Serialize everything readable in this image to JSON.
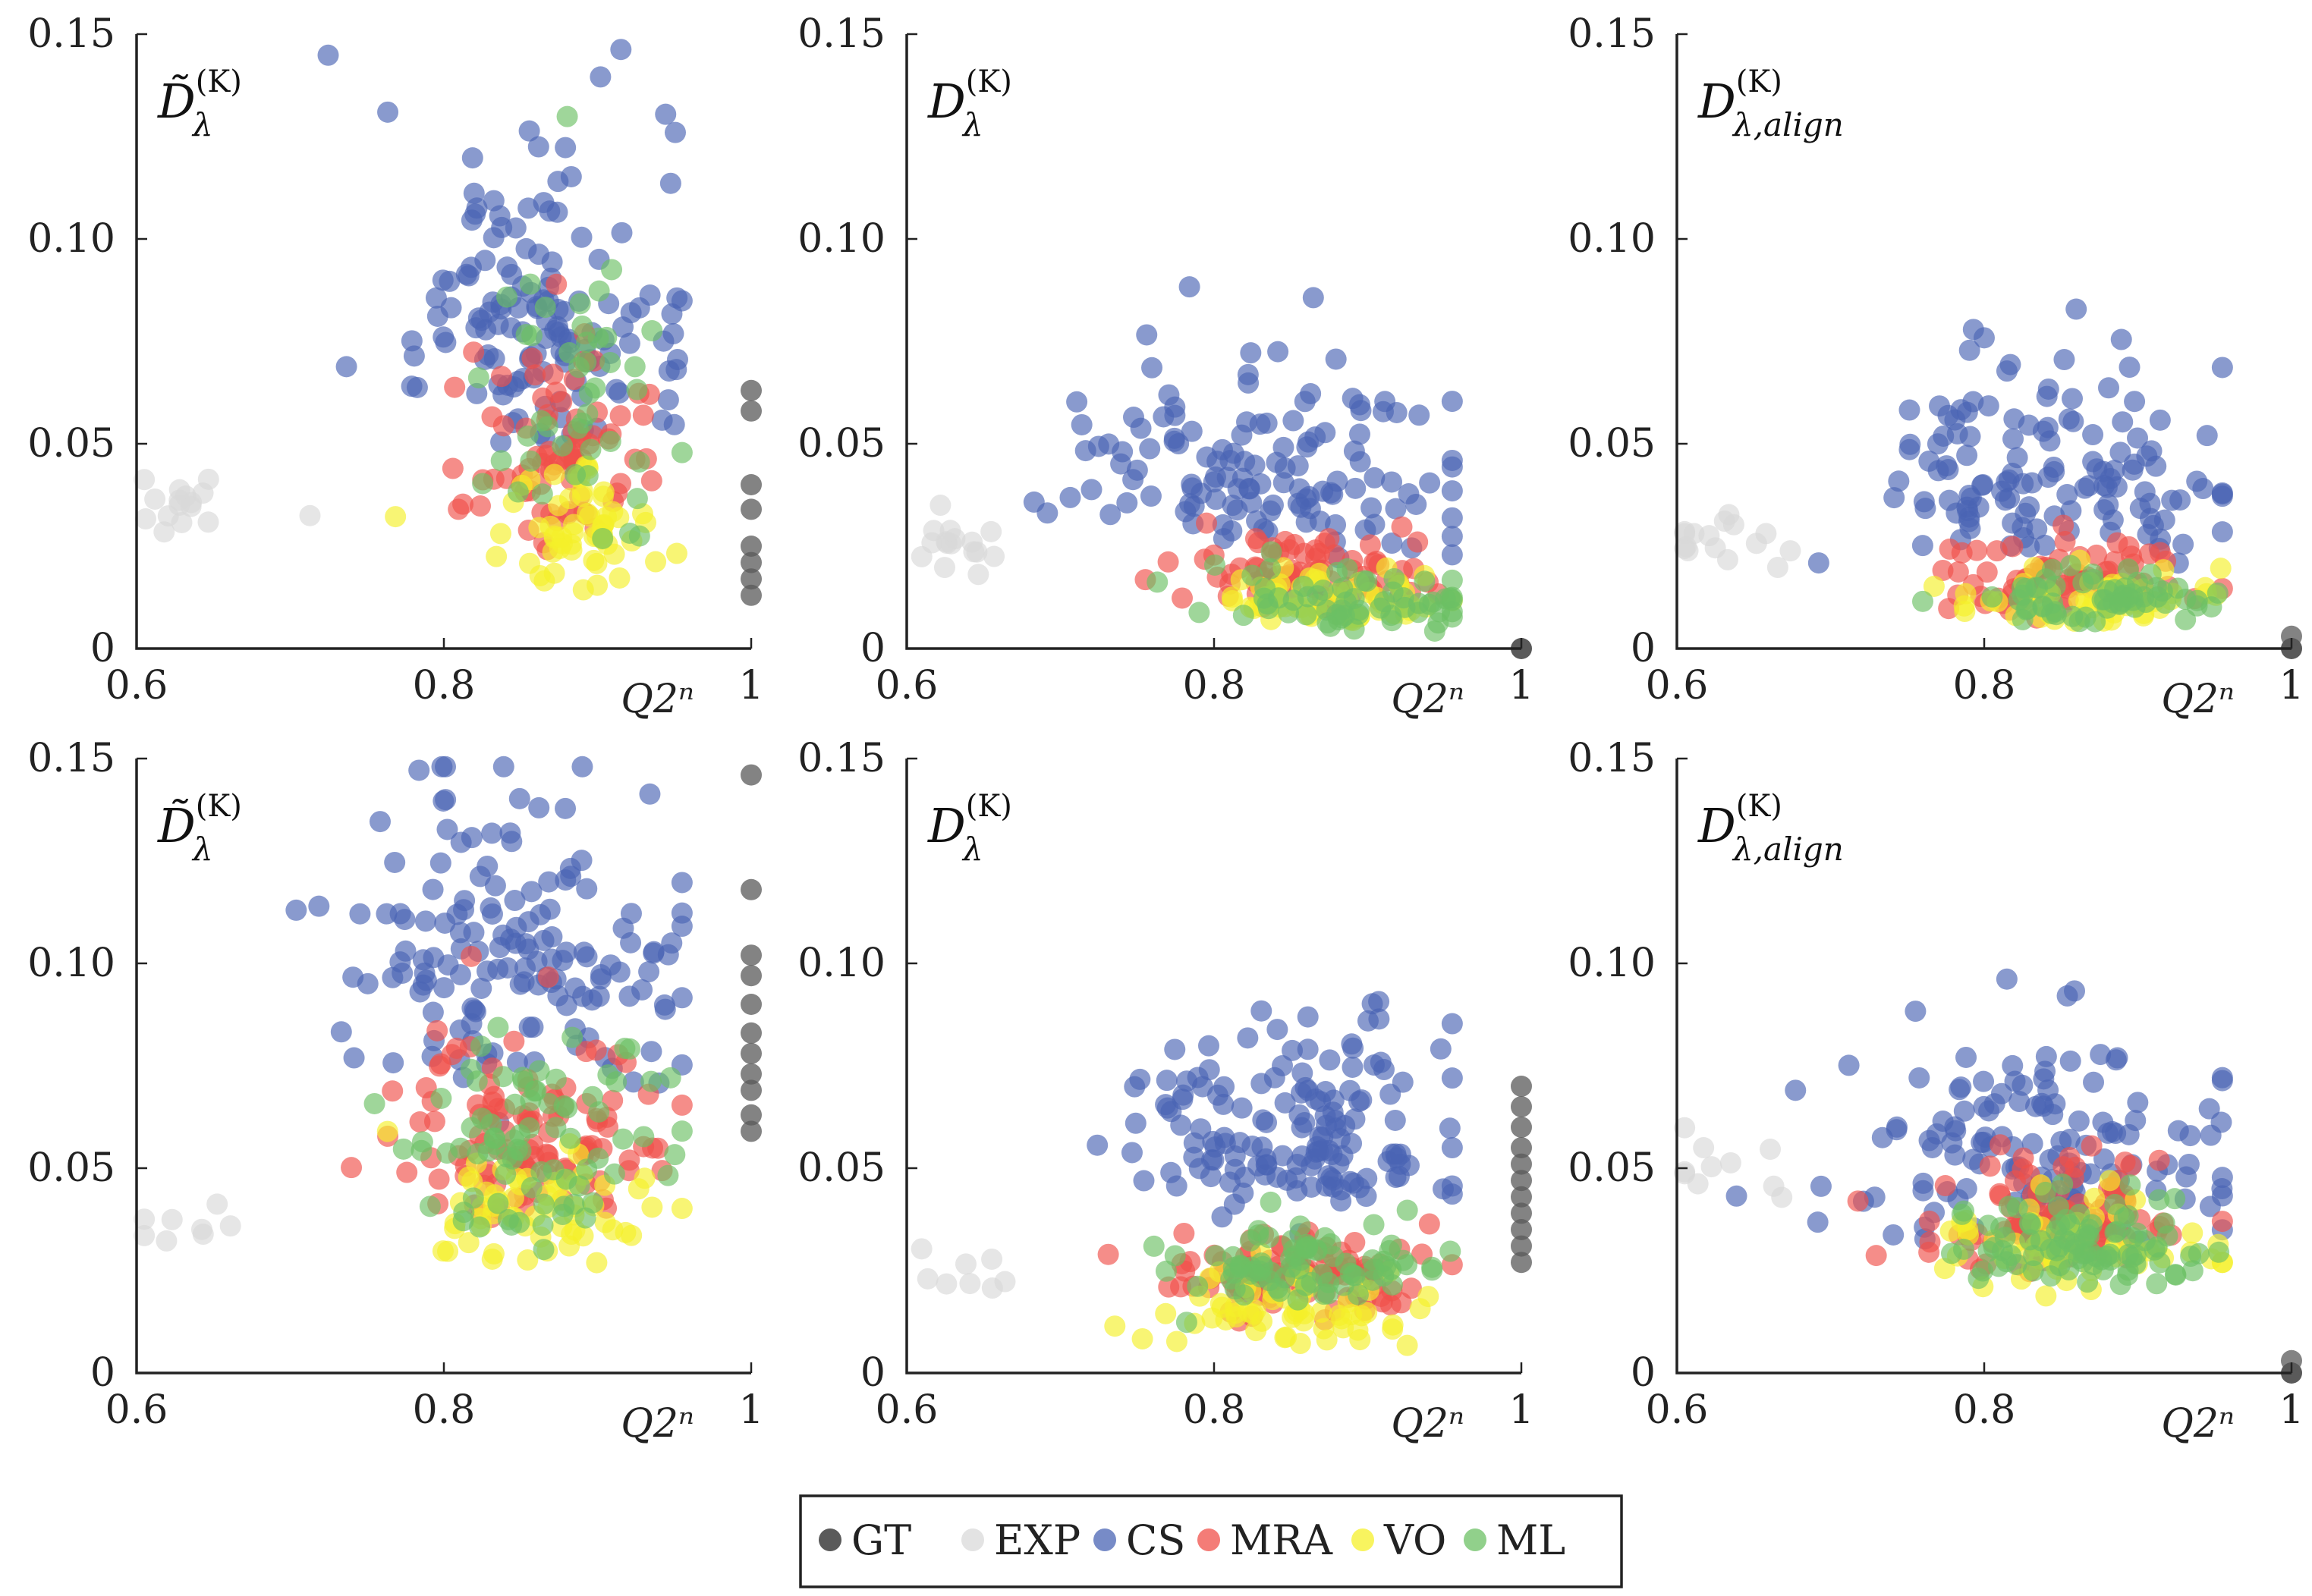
{
  "colors": {
    "GT": "#5a5a5a",
    "EXP": "#d9d9d9",
    "CS": "#4a64b4",
    "MRA": "#f0504a",
    "VO": "#f5f02a",
    "ML": "#6cc064"
  },
  "legend": [
    {
      "name": "GT",
      "label": "GT"
    },
    {
      "name": "EXP",
      "label": "EXP"
    },
    {
      "name": "CS",
      "label": "CS"
    },
    {
      "name": "MRA",
      "label": "MRA"
    },
    {
      "name": "VO",
      "label": "VO"
    },
    {
      "name": "ML",
      "label": "ML"
    }
  ],
  "chart_data": [
    {
      "type": "scatter",
      "id": "top-left",
      "title": "D̃λ(K)",
      "ylabel_main": "D̃",
      "ylabel_sub": "λ",
      "ylabel_sup": "(K)",
      "xlabel": "Q2ⁿ",
      "xlim": [
        0.6,
        1.0
      ],
      "ylim": [
        0,
        0.15
      ],
      "xticks": [
        "0.6",
        "0.8",
        "1"
      ],
      "yticks": [
        "0",
        "0.05",
        "0.10",
        "0.15"
      ],
      "gt_x": 1.0,
      "gt_y": [
        0.013,
        0.017,
        0.021,
        0.025,
        0.034,
        0.04,
        0.058,
        0.063
      ],
      "clusters": {
        "EXP": {
          "cx": 0.635,
          "cy": 0.032,
          "sx": 0.02,
          "sy": 0.006,
          "n": 16
        },
        "CS": {
          "cx": 0.86,
          "cy": 0.06,
          "sx": 0.05,
          "sy": 0.03,
          "n": 140
        },
        "MRA": {
          "cx": 0.875,
          "cy": 0.035,
          "sx": 0.03,
          "sy": 0.018,
          "n": 80
        },
        "VO": {
          "cx": 0.89,
          "cy": 0.022,
          "sx": 0.03,
          "sy": 0.012,
          "n": 60
        },
        "ML": {
          "cx": 0.88,
          "cy": 0.035,
          "sx": 0.04,
          "sy": 0.03,
          "n": 45
        }
      }
    },
    {
      "type": "scatter",
      "id": "top-middle",
      "title": "Dλ(K)",
      "ylabel_main": "D",
      "ylabel_sub": "λ",
      "ylabel_sup": "(K)",
      "xlabel": "Q2ⁿ",
      "xlim": [
        0.6,
        1.0
      ],
      "ylim": [
        0,
        0.15
      ],
      "xticks": [
        "0.6",
        "0.8",
        "1"
      ],
      "yticks": [
        "0",
        "0.05",
        "0.10",
        "0.15"
      ],
      "gt_x": 1.0,
      "gt_y": [
        0.0
      ],
      "clusters": {
        "EXP": {
          "cx": 0.635,
          "cy": 0.022,
          "sx": 0.02,
          "sy": 0.006,
          "n": 16
        },
        "CS": {
          "cx": 0.84,
          "cy": 0.03,
          "sx": 0.06,
          "sy": 0.02,
          "n": 130
        },
        "MRA": {
          "cx": 0.86,
          "cy": 0.012,
          "sx": 0.04,
          "sy": 0.008,
          "n": 80
        },
        "VO": {
          "cx": 0.87,
          "cy": 0.008,
          "sx": 0.04,
          "sy": 0.006,
          "n": 60
        },
        "ML": {
          "cx": 0.88,
          "cy": 0.008,
          "sx": 0.04,
          "sy": 0.006,
          "n": 60
        }
      }
    },
    {
      "type": "scatter",
      "id": "top-right",
      "title": "Dλ,align(K)",
      "ylabel_main": "D",
      "ylabel_sub": "λ,align",
      "ylabel_sup": "(K)",
      "xlabel": "Q2ⁿ",
      "xlim": [
        0.6,
        1.0
      ],
      "ylim": [
        0,
        0.15
      ],
      "xticks": [
        "0.6",
        "0.8",
        "1"
      ],
      "yticks": [
        "0",
        "0.05",
        "0.10",
        "0.15"
      ],
      "gt_x": 1.0,
      "gt_y": [
        0.0,
        0.003
      ],
      "clusters": {
        "EXP": {
          "cx": 0.63,
          "cy": 0.022,
          "sx": 0.02,
          "sy": 0.006,
          "n": 16
        },
        "CS": {
          "cx": 0.84,
          "cy": 0.03,
          "sx": 0.06,
          "sy": 0.02,
          "n": 130
        },
        "MRA": {
          "cx": 0.86,
          "cy": 0.012,
          "sx": 0.04,
          "sy": 0.008,
          "n": 80
        },
        "VO": {
          "cx": 0.87,
          "cy": 0.008,
          "sx": 0.04,
          "sy": 0.006,
          "n": 60
        },
        "ML": {
          "cx": 0.88,
          "cy": 0.008,
          "sx": 0.04,
          "sy": 0.006,
          "n": 60
        }
      }
    },
    {
      "type": "scatter",
      "id": "bottom-left",
      "title": "D̃λ(K)",
      "ylabel_main": "D̃",
      "ylabel_sub": "λ",
      "ylabel_sup": "(K)",
      "xlabel": "Q2ⁿ",
      "xlim": [
        0.6,
        1.0
      ],
      "ylim": [
        0,
        0.15
      ],
      "xticks": [
        "0.6",
        "0.8",
        "1"
      ],
      "yticks": [
        "0",
        "0.05",
        "0.10",
        "0.15"
      ],
      "gt_x": 1.0,
      "gt_y": [
        0.059,
        0.063,
        0.069,
        0.073,
        0.078,
        0.083,
        0.09,
        0.097,
        0.102,
        0.118,
        0.146
      ],
      "clusters": {
        "EXP": {
          "cx": 0.63,
          "cy": 0.033,
          "sx": 0.02,
          "sy": 0.006,
          "n": 8
        },
        "CS": {
          "cx": 0.85,
          "cy": 0.085,
          "sx": 0.05,
          "sy": 0.03,
          "n": 150
        },
        "MRA": {
          "cx": 0.85,
          "cy": 0.045,
          "sx": 0.04,
          "sy": 0.018,
          "n": 110
        },
        "VO": {
          "cx": 0.86,
          "cy": 0.03,
          "sx": 0.05,
          "sy": 0.012,
          "n": 60
        },
        "ML": {
          "cx": 0.86,
          "cy": 0.04,
          "sx": 0.04,
          "sy": 0.02,
          "n": 80
        }
      }
    },
    {
      "type": "scatter",
      "id": "bottom-middle",
      "title": "Dλ(K)",
      "ylabel_main": "D",
      "ylabel_sub": "λ",
      "ylabel_sup": "(K)",
      "xlabel": "Q2ⁿ",
      "xlim": [
        0.6,
        1.0
      ],
      "ylim": [
        0,
        0.15
      ],
      "xticks": [
        "0.6",
        "0.8",
        "1"
      ],
      "yticks": [
        "0",
        "0.05",
        "0.10",
        "0.15"
      ],
      "gt_x": 1.0,
      "gt_y": [
        0.027,
        0.031,
        0.035,
        0.039,
        0.043,
        0.047,
        0.051,
        0.055,
        0.06,
        0.065,
        0.07
      ],
      "clusters": {
        "EXP": {
          "cx": 0.63,
          "cy": 0.02,
          "sx": 0.02,
          "sy": 0.005,
          "n": 8
        },
        "CS": {
          "cx": 0.85,
          "cy": 0.045,
          "sx": 0.06,
          "sy": 0.02,
          "n": 150
        },
        "MRA": {
          "cx": 0.85,
          "cy": 0.018,
          "sx": 0.04,
          "sy": 0.008,
          "n": 100
        },
        "VO": {
          "cx": 0.84,
          "cy": 0.01,
          "sx": 0.05,
          "sy": 0.008,
          "n": 60
        },
        "ML": {
          "cx": 0.86,
          "cy": 0.02,
          "sx": 0.04,
          "sy": 0.008,
          "n": 80
        }
      }
    },
    {
      "type": "scatter",
      "id": "bottom-right",
      "title": "Dλ,align(K)",
      "ylabel_main": "D",
      "ylabel_sub": "λ,align",
      "ylabel_sup": "(K)",
      "xlabel": "Q2ⁿ",
      "xlim": [
        0.6,
        1.0
      ],
      "ylim": [
        0,
        0.15
      ],
      "xticks": [
        "0.6",
        "0.8",
        "1"
      ],
      "yticks": [
        "0",
        "0.05",
        "0.10",
        "0.15"
      ],
      "gt_x": 1.0,
      "gt_y": [
        0.0,
        0.003
      ],
      "clusters": {
        "EXP": {
          "cx": 0.63,
          "cy": 0.045,
          "sx": 0.02,
          "sy": 0.008,
          "n": 10
        },
        "CS": {
          "cx": 0.84,
          "cy": 0.04,
          "sx": 0.06,
          "sy": 0.02,
          "n": 140
        },
        "MRA": {
          "cx": 0.85,
          "cy": 0.03,
          "sx": 0.04,
          "sy": 0.01,
          "n": 110
        },
        "VO": {
          "cx": 0.86,
          "cy": 0.025,
          "sx": 0.05,
          "sy": 0.01,
          "n": 60
        },
        "ML": {
          "cx": 0.86,
          "cy": 0.025,
          "sx": 0.04,
          "sy": 0.01,
          "n": 90
        }
      }
    }
  ]
}
